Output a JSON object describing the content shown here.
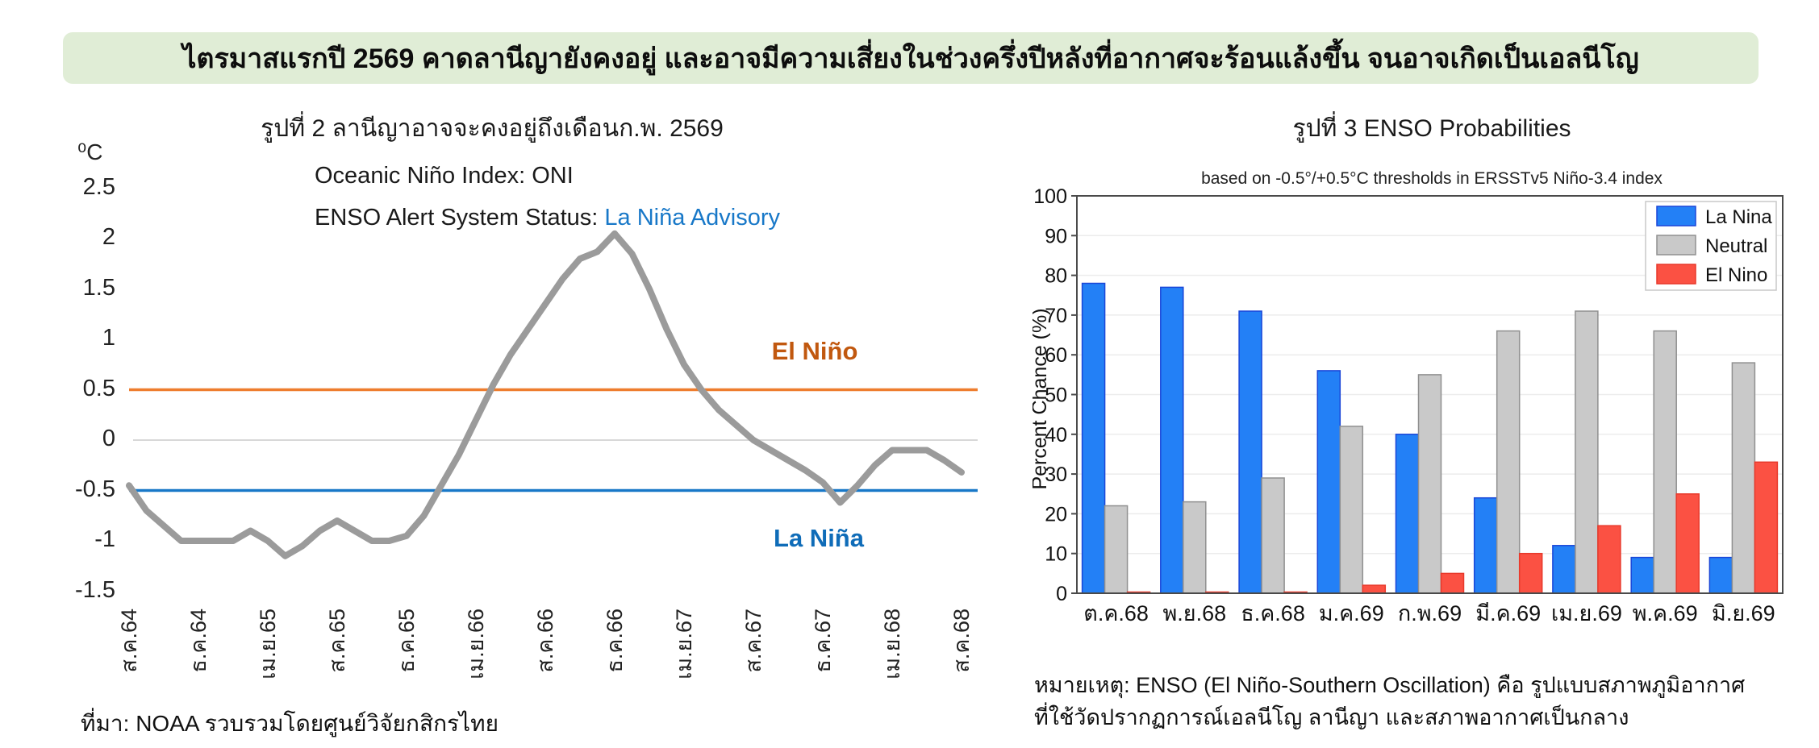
{
  "banner": {
    "title": "ไตรมาสแรกปี 2569 คาดลานีญายังคงอยู่ และอาจมีความเสี่ยงในช่วงครึ่งปีหลังที่อากาศจะร้อนแล้งขึ้น จนอาจเกิดเป็นเอลนีโญ"
  },
  "left_chart": {
    "title": "รูปที่ 2 ลานีญาอาจจะคงอยู่ถึงเดือนก.พ. 2569",
    "subtitle": "Oceanic Niño Index: ONI",
    "status_label": "ENSO Alert System Status: ",
    "status_value": "La Niña Advisory",
    "unit": "⁰C",
    "el_nino_annotation": "El Niño",
    "la_nina_annotation": "La Niña",
    "source": "ที่มา: NOAA รวบรวมโดยศูนย์วิจัยกสิกรไทย"
  },
  "right_chart": {
    "title": "รูปที่ 3 ENSO Probabilities",
    "subtitle": "based on -0.5°/+0.5°C thresholds in ERSSTv5 Niño-3.4 index",
    "ylabel": "Percent Chance (%)",
    "footnote_line1": "หมายเหตุ: ENSO (El Niño-Southern Oscillation) คือ รูปแบบสภาพภูมิอากาศ",
    "footnote_line2": "ที่ใช้วัดปรากฏการณ์เอลนีโญ ลานีญา และสภาพอากาศเป็นกลาง"
  },
  "colors": {
    "banner_bg": "#e0edd6",
    "oni_line": "#9b9b9b",
    "el_nino_line": "#ee7d2e",
    "el_nino_text": "#c1580f",
    "la_nina_line": "#1878c8",
    "la_nina_text": "#0f6cb8",
    "status_value_text": "#1878c8",
    "zero_line": "#d8d8d8",
    "bar_la_nina": "#2380f6",
    "bar_la_nina_edge": "#1a46d8",
    "bar_neutral": "#c9c9c9",
    "bar_neutral_edge": "#909090",
    "bar_el_nino": "#fb5143",
    "bar_el_nino_edge": "#e8392b",
    "grid": "#ececec",
    "frame": "#4a4a4a"
  },
  "chart_data": [
    {
      "type": "line",
      "title": "รูปที่ 2 ลานีญาอาจจะคงอยู่ถึงเดือนก.พ. 2569",
      "subtitle": "Oceanic Niño Index: ONI",
      "ylabel_unit": "⁰C",
      "ylim": [
        -1.5,
        2.5
      ],
      "yticks": [
        2.5,
        2,
        1.5,
        1,
        0.5,
        0,
        -0.5,
        -1,
        -1.5
      ],
      "x_tick_labels": [
        "ส.ค.64",
        "ธ.ค.64",
        "เม.ย.65",
        "ส.ค.65",
        "ธ.ค.65",
        "เม.ย.66",
        "ส.ค.66",
        "ธ.ค.66",
        "เม.ย.67",
        "ส.ค.67",
        "ธ.ค.67",
        "เม.ย.68",
        "ส.ค.68"
      ],
      "x_frequency": "monthly",
      "thresholds": {
        "el_nino": 0.5,
        "la_nina": -0.5,
        "zero": 0
      },
      "annotations": {
        "el_nino": "El Niño",
        "la_nina": "La Niña"
      },
      "series": [
        {
          "name": "ONI",
          "values": [
            -0.45,
            -0.7,
            -0.85,
            -1.0,
            -1.0,
            -1.0,
            -1.0,
            -0.9,
            -1.0,
            -1.15,
            -1.05,
            -0.9,
            -0.8,
            -0.9,
            -1.0,
            -1.0,
            -0.95,
            -0.75,
            -0.45,
            -0.15,
            0.2,
            0.55,
            0.85,
            1.1,
            1.35,
            1.6,
            1.8,
            1.87,
            2.05,
            1.85,
            1.5,
            1.1,
            0.75,
            0.5,
            0.3,
            0.15,
            0.0,
            -0.1,
            -0.2,
            -0.3,
            -0.42,
            -0.62,
            -0.45,
            -0.25,
            -0.1,
            -0.1,
            -0.1,
            -0.2,
            -0.32
          ]
        }
      ],
      "source": "ที่มา: NOAA รวบรวมโดยศูนย์วิจัยกสิกรไทย"
    },
    {
      "type": "bar",
      "title": "รูปที่ 3 ENSO Probabilities",
      "subtitle": "based on -0.5°/+0.5°C thresholds in ERSSTv5 Niño-3.4 index",
      "ylabel": "Percent Chance (%)",
      "ylim": [
        0,
        100
      ],
      "yticks": [
        0,
        10,
        20,
        30,
        40,
        50,
        60,
        70,
        80,
        90,
        100
      ],
      "grid": true,
      "legend_position": "top-right",
      "categories": [
        "ต.ค.68",
        "พ.ย.68",
        "ธ.ค.68",
        "ม.ค.69",
        "ก.พ.69",
        "มี.ค.69",
        "เม.ย.69",
        "พ.ค.69",
        "มิ.ย.69"
      ],
      "series": [
        {
          "name": "La Nina",
          "values": [
            78,
            77,
            71,
            56,
            40,
            24,
            12,
            9,
            9
          ]
        },
        {
          "name": "Neutral",
          "values": [
            22,
            23,
            29,
            42,
            55,
            66,
            71,
            66,
            58
          ]
        },
        {
          "name": "El Nino",
          "values": [
            0,
            0,
            0,
            2,
            5,
            10,
            17,
            25,
            33
          ]
        }
      ]
    }
  ]
}
